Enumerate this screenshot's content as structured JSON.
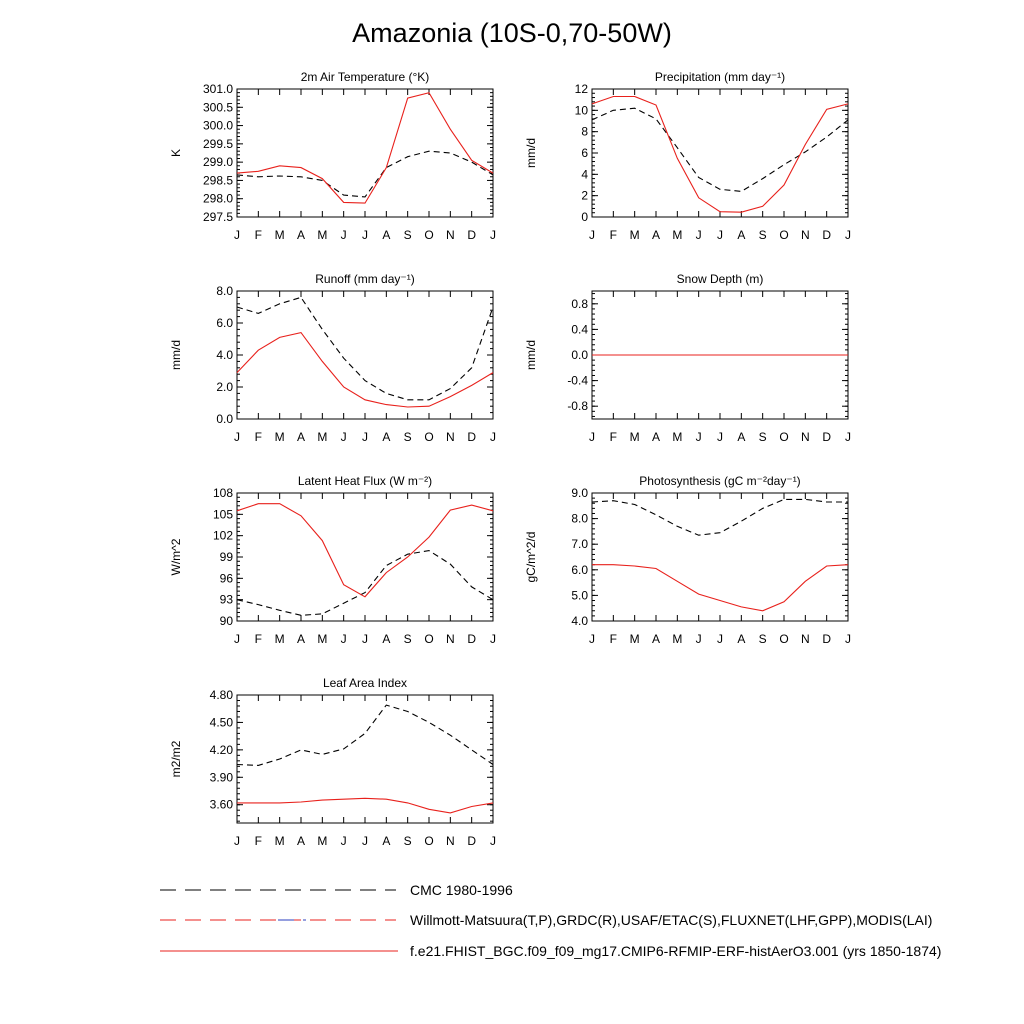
{
  "page": {
    "title": "Amazonia (10S-0,70-50W)"
  },
  "legend": [
    {
      "label": "CMC 1980-1996",
      "style": "dash-black"
    },
    {
      "label": "Willmott-Matsuura(T,P),GRDC(R),USAF/ETAC(S),FLUXNET(LHF,GPP),MODIS(LAI)",
      "style": "dash-red-blue"
    },
    {
      "label": "f.e21.FHIST_BGC.f09_f09_mg17.CMIP6-RFMIP-ERF-histAerO3.001 (yrs 1850-1874)",
      "style": "solid-red"
    }
  ],
  "colors": {
    "model": "#e8211c",
    "obs": "#000000",
    "obs_alt": "#2b3fbf"
  },
  "chart_data": [
    {
      "type": "line",
      "title": "2m Air Temperature (°K)",
      "ylabel": "K",
      "categories": [
        "J",
        "F",
        "M",
        "A",
        "M",
        "J",
        "J",
        "A",
        "S",
        "O",
        "N",
        "D",
        "J"
      ],
      "ylim": [
        297.5,
        301.0
      ],
      "yticks": [
        "297.5",
        "298.0",
        "298.5",
        "299.0",
        "299.5",
        "300.0",
        "300.5",
        "301.0"
      ],
      "series": [
        {
          "name": "obs",
          "style": "dash",
          "values": [
            298.65,
            298.6,
            298.62,
            298.6,
            298.5,
            298.1,
            298.05,
            298.85,
            299.15,
            299.3,
            299.25,
            299.0,
            298.65
          ]
        },
        {
          "name": "model",
          "style": "solid",
          "values": [
            298.7,
            298.75,
            298.9,
            298.85,
            298.55,
            297.9,
            297.88,
            298.85,
            300.75,
            300.9,
            299.9,
            299.05,
            298.7
          ]
        }
      ]
    },
    {
      "type": "line",
      "title": "Precipitation (mm day⁻¹)",
      "ylabel": "mm/d",
      "categories": [
        "J",
        "F",
        "M",
        "A",
        "M",
        "J",
        "J",
        "A",
        "S",
        "O",
        "N",
        "D",
        "J"
      ],
      "ylim": [
        0,
        12
      ],
      "yticks": [
        "0",
        "2",
        "4",
        "6",
        "8",
        "10",
        "12"
      ],
      "series": [
        {
          "name": "obs",
          "style": "dash",
          "values": [
            9.1,
            10.0,
            10.2,
            9.2,
            6.5,
            3.7,
            2.6,
            2.4,
            3.6,
            4.9,
            6.1,
            7.5,
            9.1
          ]
        },
        {
          "name": "model",
          "style": "solid",
          "values": [
            10.6,
            11.3,
            11.3,
            10.5,
            5.5,
            1.8,
            0.5,
            0.45,
            1.0,
            3.0,
            6.8,
            10.1,
            10.6
          ]
        }
      ]
    },
    {
      "type": "line",
      "title": "Runoff (mm day⁻¹)",
      "ylabel": "mm/d",
      "categories": [
        "J",
        "F",
        "M",
        "A",
        "M",
        "J",
        "J",
        "A",
        "S",
        "O",
        "N",
        "D",
        "J"
      ],
      "ylim": [
        0,
        8
      ],
      "yticks": [
        "0.0",
        "2.0",
        "4.0",
        "6.0",
        "8.0"
      ],
      "series": [
        {
          "name": "obs",
          "style": "dash",
          "values": [
            7.0,
            6.6,
            7.2,
            7.6,
            5.6,
            3.8,
            2.4,
            1.6,
            1.2,
            1.2,
            1.9,
            3.2,
            7.0
          ]
        },
        {
          "name": "model",
          "style": "solid",
          "values": [
            2.9,
            4.3,
            5.1,
            5.4,
            3.6,
            2.0,
            1.2,
            0.9,
            0.75,
            0.8,
            1.4,
            2.1,
            2.9
          ]
        }
      ]
    },
    {
      "type": "line",
      "title": "Snow Depth (m)",
      "ylabel": "mm/d",
      "categories": [
        "J",
        "F",
        "M",
        "A",
        "M",
        "J",
        "J",
        "A",
        "S",
        "O",
        "N",
        "D",
        "J"
      ],
      "ylim": [
        -1.0,
        1.0
      ],
      "yticks": [
        "-0.8",
        "-0.4",
        "0.0",
        "0.4",
        "0.8"
      ],
      "series": [
        {
          "name": "obs",
          "style": "dash-blue",
          "values": [
            0,
            0,
            0,
            0,
            0,
            0,
            0,
            0,
            0,
            0,
            0,
            0,
            0
          ]
        },
        {
          "name": "model",
          "style": "solid",
          "values": [
            0,
            0,
            0,
            0,
            0,
            0,
            0,
            0,
            0,
            0,
            0,
            0,
            0
          ]
        }
      ]
    },
    {
      "type": "line",
      "title": "Latent Heat Flux (W m⁻²)",
      "ylabel": "W/m^2",
      "categories": [
        "J",
        "F",
        "M",
        "A",
        "M",
        "J",
        "J",
        "A",
        "S",
        "O",
        "N",
        "D",
        "J"
      ],
      "ylim": [
        90,
        108
      ],
      "yticks": [
        "90",
        "93",
        "96",
        "99",
        "102",
        "105",
        "108"
      ],
      "series": [
        {
          "name": "obs",
          "style": "dash",
          "values": [
            93.0,
            92.3,
            91.5,
            90.8,
            91.0,
            92.5,
            94.0,
            97.8,
            99.4,
            99.9,
            98.0,
            94.8,
            93.0
          ]
        },
        {
          "name": "model",
          "style": "solid",
          "values": [
            105.5,
            106.5,
            106.5,
            104.8,
            101.3,
            95.1,
            93.4,
            96.8,
            99.0,
            101.8,
            105.6,
            106.3,
            105.5
          ]
        }
      ]
    },
    {
      "type": "line",
      "title": "Photosynthesis (gC m⁻²day⁻¹)",
      "ylabel": "gC/m^2/d",
      "categories": [
        "J",
        "F",
        "M",
        "A",
        "M",
        "J",
        "J",
        "A",
        "S",
        "O",
        "N",
        "D",
        "J"
      ],
      "ylim": [
        4.0,
        9.0
      ],
      "yticks": [
        "4.0",
        "5.0",
        "6.0",
        "7.0",
        "8.0",
        "9.0"
      ],
      "series": [
        {
          "name": "obs",
          "style": "dash",
          "values": [
            8.65,
            8.7,
            8.55,
            8.15,
            7.7,
            7.35,
            7.45,
            7.9,
            8.4,
            8.75,
            8.75,
            8.65,
            8.65
          ]
        },
        {
          "name": "model",
          "style": "solid",
          "values": [
            6.2,
            6.2,
            6.15,
            6.05,
            5.55,
            5.05,
            4.8,
            4.55,
            4.4,
            4.75,
            5.55,
            6.15,
            6.2
          ]
        }
      ]
    },
    {
      "type": "line",
      "title": "Leaf Area Index",
      "ylabel": "m2/m2",
      "categories": [
        "J",
        "F",
        "M",
        "A",
        "M",
        "J",
        "J",
        "A",
        "S",
        "O",
        "N",
        "D",
        "J"
      ],
      "ylim": [
        3.4,
        4.8
      ],
      "yticks": [
        "3.60",
        "3.90",
        "4.20",
        "4.50",
        "4.80"
      ],
      "series": [
        {
          "name": "obs",
          "style": "dash",
          "values": [
            4.04,
            4.03,
            4.1,
            4.2,
            4.15,
            4.21,
            4.38,
            4.69,
            4.62,
            4.5,
            4.36,
            4.2,
            4.04
          ]
        },
        {
          "name": "model",
          "style": "solid",
          "values": [
            3.62,
            3.62,
            3.62,
            3.63,
            3.65,
            3.66,
            3.67,
            3.66,
            3.62,
            3.55,
            3.51,
            3.58,
            3.62
          ]
        }
      ]
    }
  ]
}
